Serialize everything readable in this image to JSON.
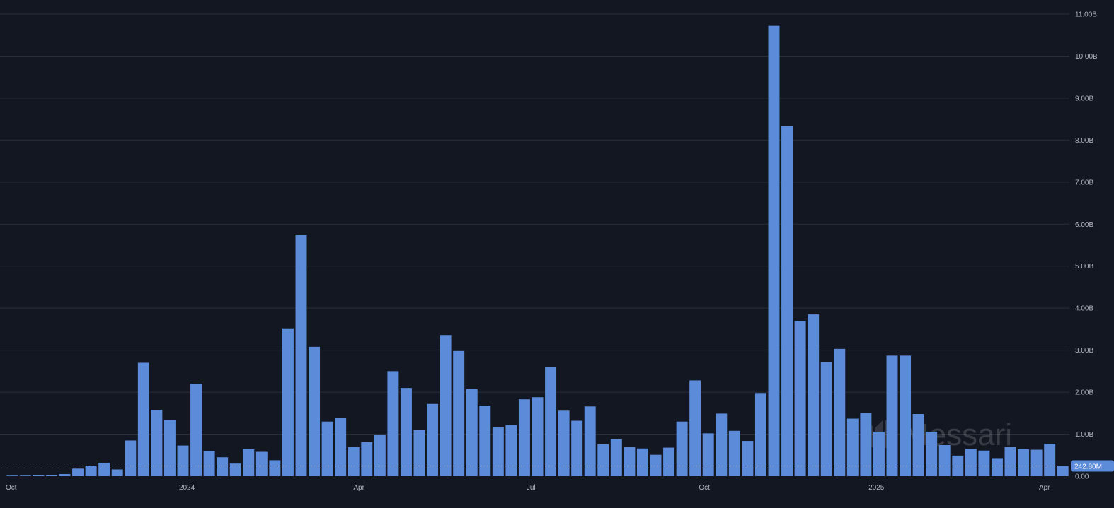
{
  "chart_data": {
    "type": "bar",
    "title": "",
    "xlabel": "",
    "ylabel": "",
    "ylim": [
      0,
      11000000000
    ],
    "y_ticks": [
      {
        "value": 0,
        "label": "0.00"
      },
      {
        "value": 1000000000,
        "label": "1.00B"
      },
      {
        "value": 2000000000,
        "label": "2.00B"
      },
      {
        "value": 3000000000,
        "label": "3.00B"
      },
      {
        "value": 4000000000,
        "label": "4.00B"
      },
      {
        "value": 5000000000,
        "label": "5.00B"
      },
      {
        "value": 6000000000,
        "label": "6.00B"
      },
      {
        "value": 7000000000,
        "label": "7.00B"
      },
      {
        "value": 8000000000,
        "label": "8.00B"
      },
      {
        "value": 9000000000,
        "label": "9.00B"
      },
      {
        "value": 10000000000,
        "label": "10.00B"
      },
      {
        "value": 11000000000,
        "label": "11.00B"
      }
    ],
    "x_ticks": [
      {
        "index": 0,
        "label": "Oct"
      },
      {
        "index": 13.3,
        "label": "2024"
      },
      {
        "index": 26.4,
        "label": "Apr"
      },
      {
        "index": 39.5,
        "label": "Jul"
      },
      {
        "index": 52.7,
        "label": "Oct"
      },
      {
        "index": 65.8,
        "label": "2025"
      },
      {
        "index": 78.6,
        "label": "Apr"
      }
    ],
    "grid": true,
    "y_axis_side": "right",
    "bar_color": "#5b8bd9",
    "values": [
      0.01,
      0.01,
      0.02,
      0.03,
      0.05,
      0.18,
      0.25,
      0.32,
      0.16,
      0.85,
      2.7,
      1.58,
      1.33,
      0.73,
      2.2,
      0.6,
      0.45,
      0.3,
      0.64,
      0.58,
      0.38,
      3.52,
      5.75,
      3.08,
      1.3,
      1.38,
      0.69,
      0.81,
      0.98,
      2.5,
      2.1,
      1.1,
      1.72,
      3.36,
      2.98,
      2.07,
      1.68,
      1.16,
      1.22,
      1.83,
      1.88,
      2.59,
      1.56,
      1.32,
      1.66,
      0.76,
      0.88,
      0.7,
      0.66,
      0.51,
      0.68,
      1.3,
      2.28,
      1.02,
      1.49,
      1.08,
      0.84,
      1.98,
      10.72,
      8.33,
      3.7,
      3.85,
      2.72,
      3.03,
      1.37,
      1.51,
      1.06,
      2.87,
      2.87,
      1.48,
      1.06,
      0.74,
      0.49,
      0.65,
      0.61,
      0.43,
      0.7,
      0.64,
      0.63,
      0.77,
      0.243
    ],
    "value_unit": "B",
    "last_value_label": "242.80M",
    "watermark": "Messari"
  }
}
